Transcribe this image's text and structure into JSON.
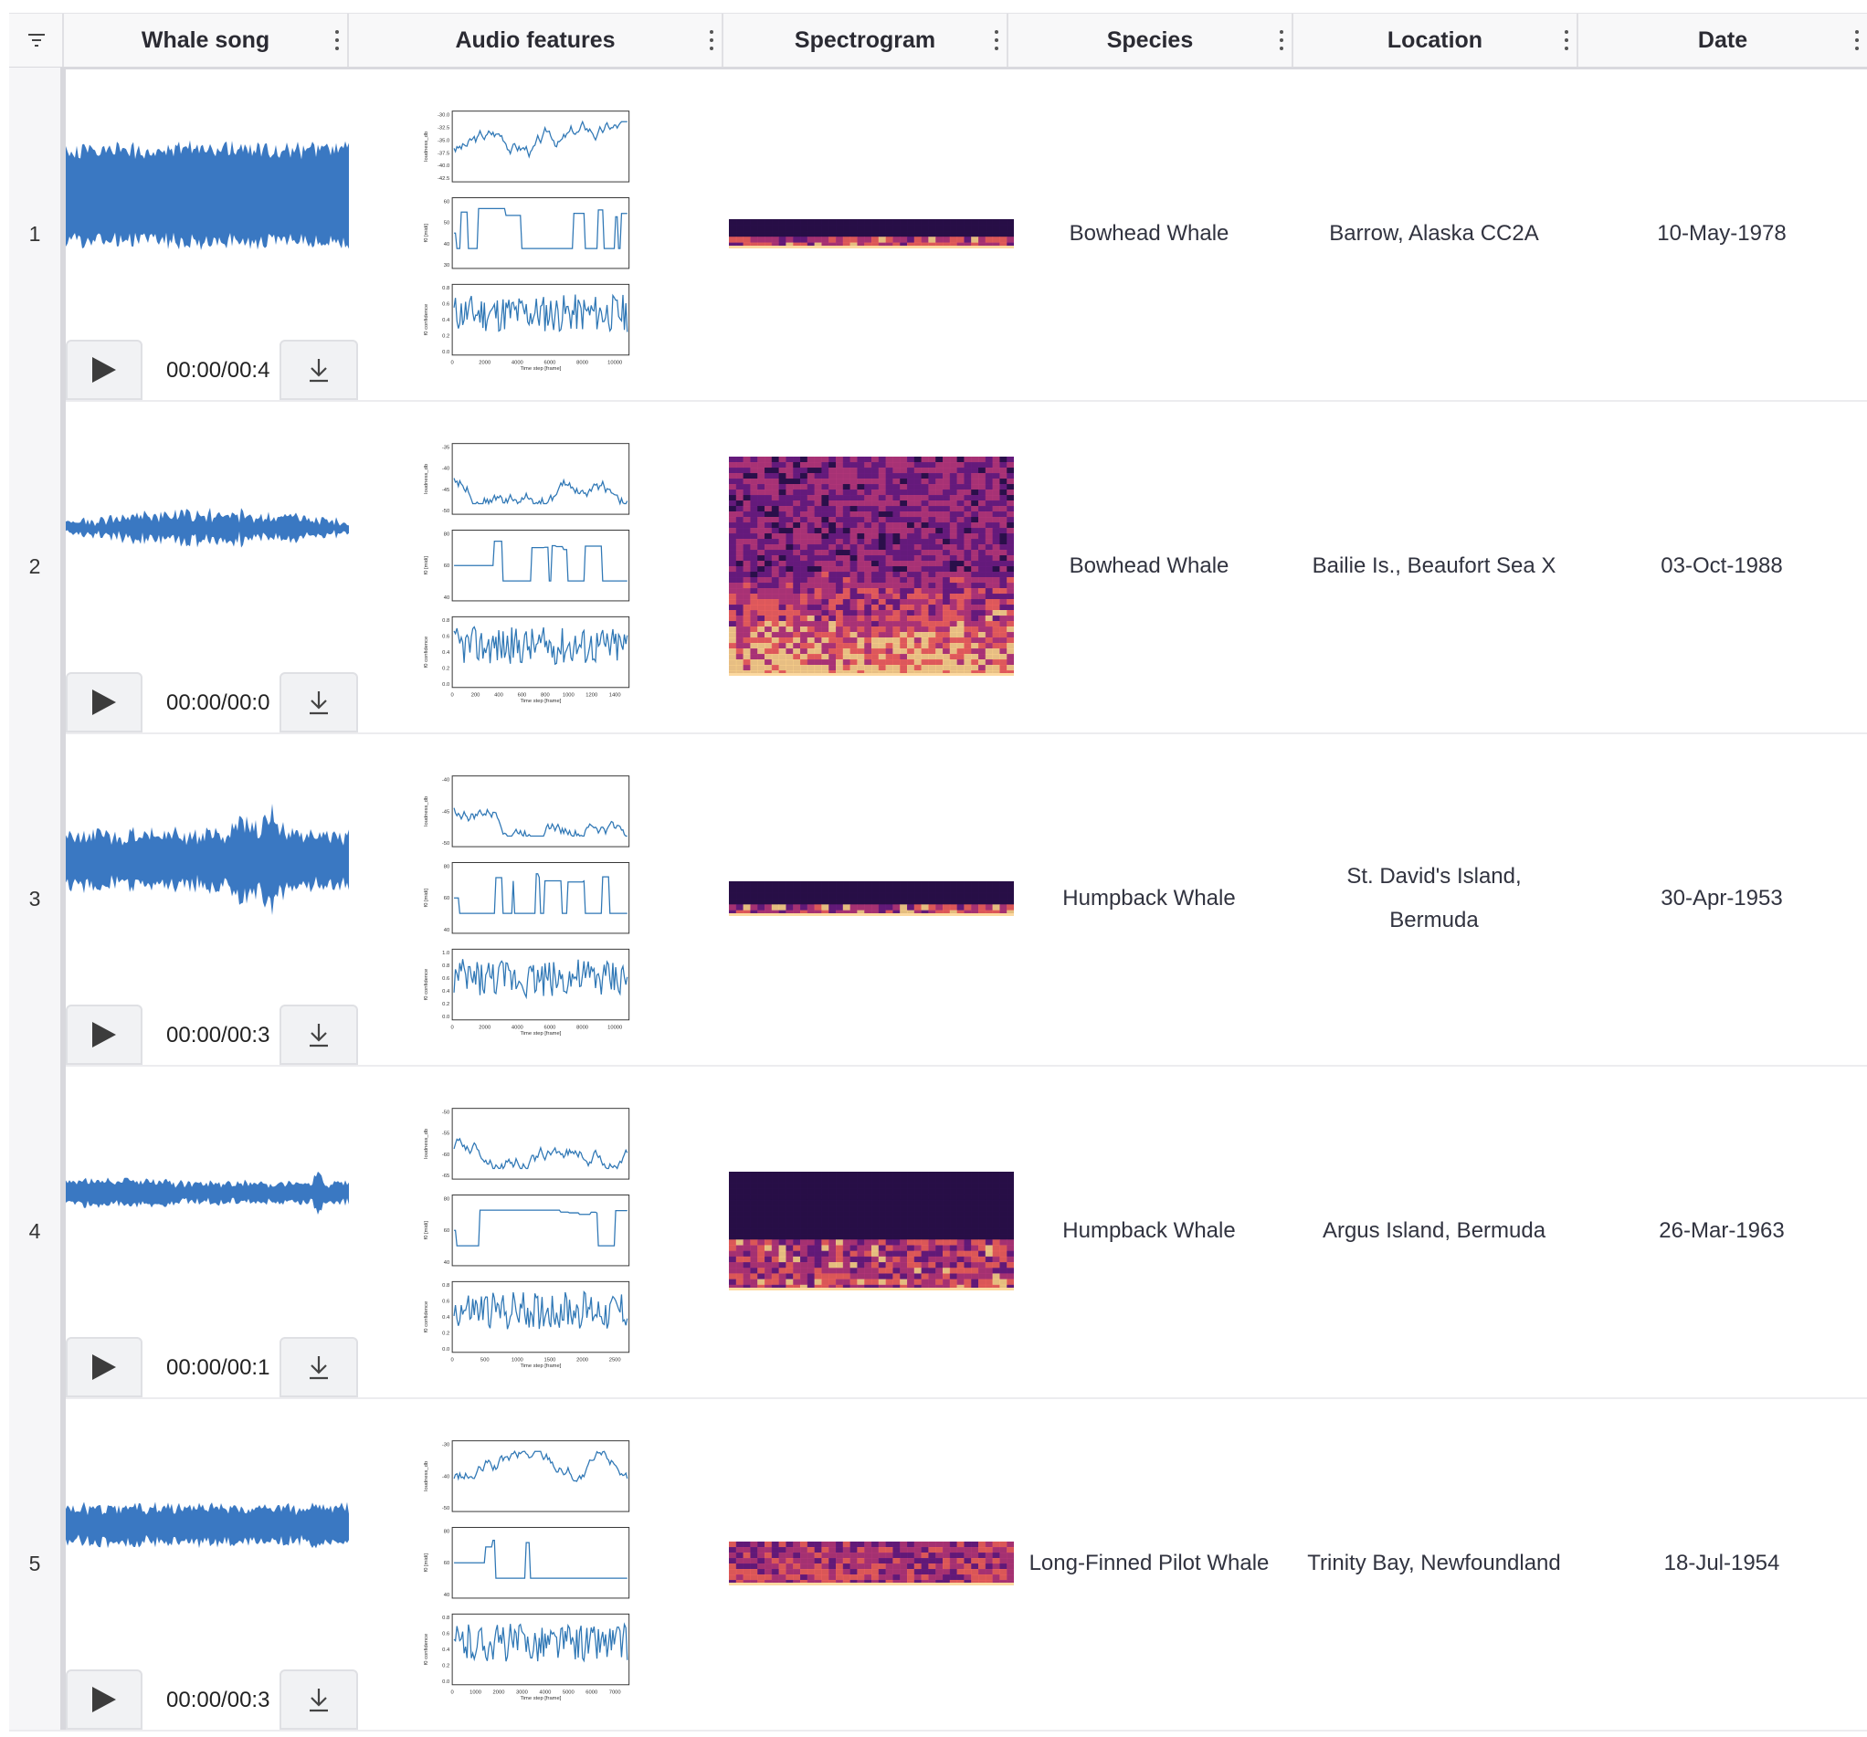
{
  "table": {
    "columns": [
      {
        "key": "whale_song",
        "label": "Whale song"
      },
      {
        "key": "audio_features",
        "label": "Audio features"
      },
      {
        "key": "spectrogram",
        "label": "Spectrogram"
      },
      {
        "key": "species",
        "label": "Species"
      },
      {
        "key": "location",
        "label": "Location"
      },
      {
        "key": "date",
        "label": "Date"
      }
    ],
    "rows": [
      {
        "index": "1",
        "time": "00:00/00:4",
        "species": "Bowhead Whale",
        "location": "Barrow, Alaska CC2A",
        "date": "10-May-1978",
        "loudness_ticks": [
          "-30.0",
          "-32.5",
          "-35.0",
          "-37.5",
          "-40.0",
          "-42.5"
        ],
        "f0_ticks": [
          "60",
          "50",
          "40",
          "30"
        ],
        "conf_ticks": [
          "0.8",
          "0.6",
          "0.4",
          "0.2",
          "0.0"
        ],
        "x_ticks": [
          "0",
          "2000",
          "4000",
          "6000",
          "8000",
          "10000"
        ]
      },
      {
        "index": "2",
        "time": "00:00/00:0",
        "species": "Bowhead Whale",
        "location": "Bailie Is., Beaufort Sea X",
        "date": "03-Oct-1988",
        "loudness_ticks": [
          "-35",
          "-40",
          "-45",
          "-50"
        ],
        "f0_ticks": [
          "80",
          "60",
          "40"
        ],
        "conf_ticks": [
          "0.8",
          "0.6",
          "0.4",
          "0.2",
          "0.0"
        ],
        "x_ticks": [
          "0",
          "200",
          "400",
          "600",
          "800",
          "1000",
          "1200",
          "1400"
        ]
      },
      {
        "index": "3",
        "time": "00:00/00:3",
        "species": "Humpback Whale",
        "location": "St. David's Island, Bermuda",
        "date": "30-Apr-1953",
        "loudness_ticks": [
          "-40",
          "-45",
          "-50"
        ],
        "f0_ticks": [
          "80",
          "60",
          "40"
        ],
        "conf_ticks": [
          "1.0",
          "0.8",
          "0.6",
          "0.4",
          "0.2",
          "0.0"
        ],
        "x_ticks": [
          "0",
          "2000",
          "4000",
          "6000",
          "8000",
          "10000"
        ]
      },
      {
        "index": "4",
        "time": "00:00/00:1",
        "species": "Humpback Whale",
        "location": "Argus Island, Bermuda",
        "date": "26-Mar-1963",
        "loudness_ticks": [
          "-50",
          "-55",
          "-60",
          "-65"
        ],
        "f0_ticks": [
          "80",
          "60",
          "40"
        ],
        "conf_ticks": [
          "0.8",
          "0.6",
          "0.4",
          "0.2",
          "0.0"
        ],
        "x_ticks": [
          "0",
          "500",
          "1000",
          "1500",
          "2000",
          "2500"
        ]
      },
      {
        "index": "5",
        "time": "00:00/00:3",
        "species": "Long-Finned Pilot Whale",
        "location": "Trinity Bay, Newfoundland",
        "date": "18-Jul-1954",
        "loudness_ticks": [
          "-30",
          "-40",
          "-50"
        ],
        "f0_ticks": [
          "80",
          "60",
          "40"
        ],
        "conf_ticks": [
          "0.8",
          "0.6",
          "0.4",
          "0.2",
          "0.0"
        ],
        "x_ticks": [
          "0",
          "1000",
          "2000",
          "3000",
          "4000",
          "5000",
          "6000",
          "7000"
        ]
      }
    ]
  },
  "plot_labels": {
    "loudness": "loudness_db",
    "f0": "f0 [midi]",
    "confidence": "f0 confidence",
    "x": "Time step [frame]"
  },
  "colors": {
    "wave": "#3a78c2",
    "plot_line": "#2f77b5",
    "header_bg": "#f8f8f9"
  },
  "icons": {
    "filter": "filter-icon",
    "play": "play-icon",
    "download": "download-icon",
    "menu": "kebab-menu-icon"
  }
}
